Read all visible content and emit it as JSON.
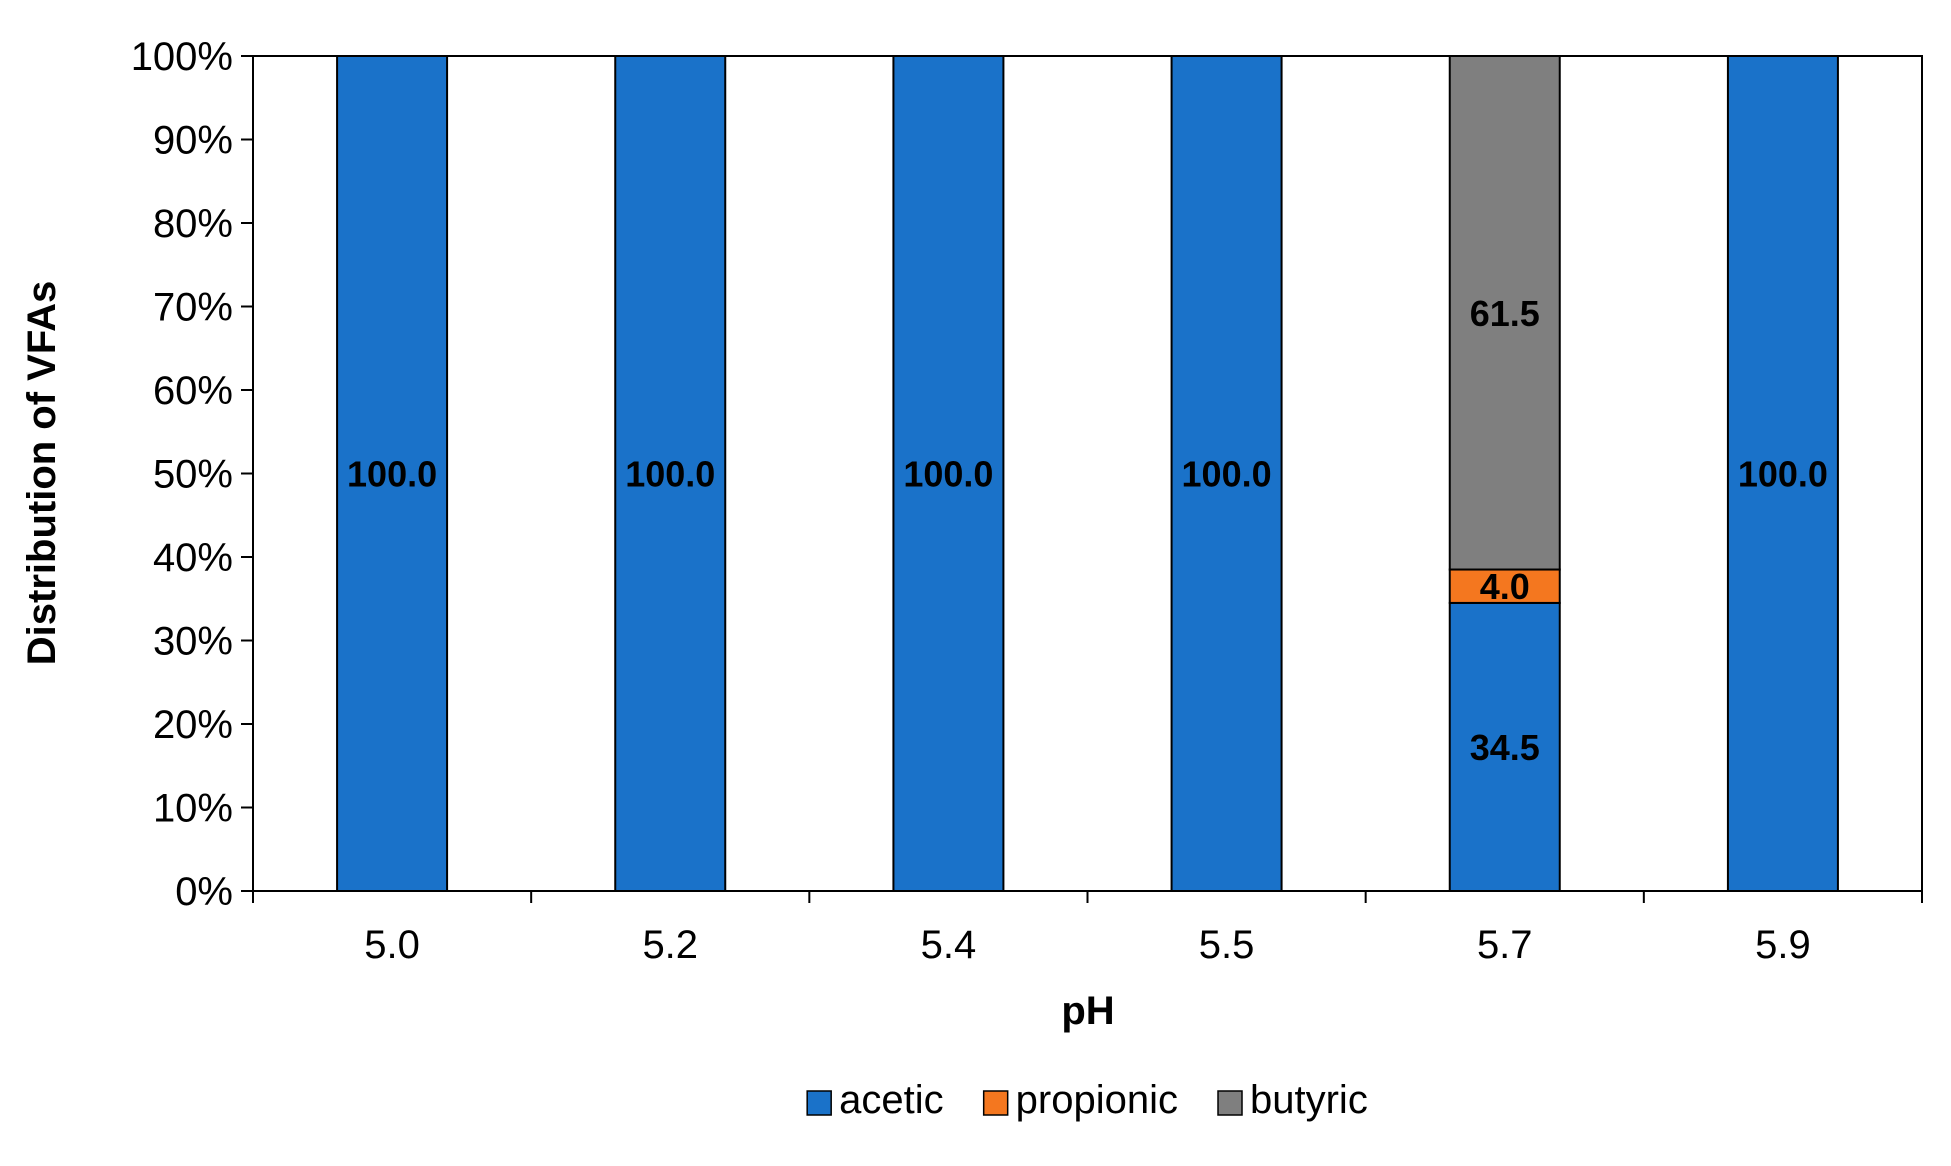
{
  "chart_data": {
    "type": "bar",
    "stacked": true,
    "percent_scale": true,
    "xlabel": "pH",
    "ylabel": "Distribution of VFAs",
    "categories": [
      "5.0",
      "5.2",
      "5.4",
      "5.5",
      "5.7",
      "5.9"
    ],
    "series": [
      {
        "name": "acetic",
        "color": "#1a72c9",
        "values": [
          100.0,
          100.0,
          100.0,
          100.0,
          34.5,
          100.0
        ]
      },
      {
        "name": "propionic",
        "color": "#f4771f",
        "values": [
          0,
          0,
          0,
          0,
          4.0,
          0
        ]
      },
      {
        "name": "butyric",
        "color": "#7f7f7f",
        "values": [
          0,
          0,
          0,
          0,
          61.5,
          0
        ]
      }
    ],
    "data_labels": [
      {
        "category": "5.0",
        "series": "acetic",
        "text": "100.0"
      },
      {
        "category": "5.2",
        "series": "acetic",
        "text": "100.0"
      },
      {
        "category": "5.4",
        "series": "acetic",
        "text": "100.0"
      },
      {
        "category": "5.5",
        "series": "acetic",
        "text": "100.0"
      },
      {
        "category": "5.7",
        "series": "acetic",
        "text": "34.5"
      },
      {
        "category": "5.7",
        "series": "propionic",
        "text": "4.0"
      },
      {
        "category": "5.7",
        "series": "butyric",
        "text": "61.5"
      },
      {
        "category": "5.9",
        "series": "acetic",
        "text": "100.0"
      }
    ],
    "ylim": [
      0,
      100
    ],
    "yticks": [
      "0%",
      "10%",
      "20%",
      "30%",
      "40%",
      "50%",
      "60%",
      "70%",
      "80%",
      "90%",
      "100%"
    ],
    "grid": false,
    "legend_position": "bottom"
  }
}
